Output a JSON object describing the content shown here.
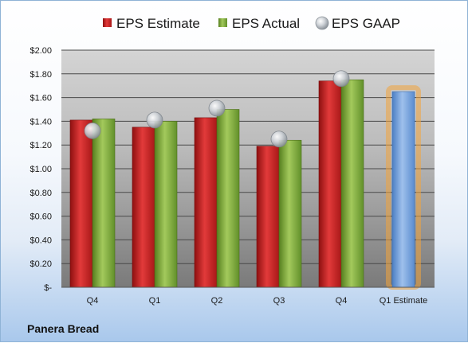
{
  "company_label": "Panera Bread",
  "colors": {
    "estimate": "#cc1f1f",
    "actual": "#7aa53a",
    "gaap": "#b9bec4",
    "forecast": "#6f9bd6",
    "forecast_glow": "#f2a43c"
  },
  "chart_data": {
    "type": "bar",
    "title": "",
    "xlabel": "",
    "ylabel": "",
    "categories": [
      "Q4",
      "Q1",
      "Q2",
      "Q3",
      "Q4",
      "Q1 Estimate"
    ],
    "series": [
      {
        "name": "EPS Estimate",
        "values": [
          1.41,
          1.35,
          1.43,
          1.19,
          1.74,
          null
        ]
      },
      {
        "name": "EPS Actual",
        "values": [
          1.42,
          1.4,
          1.5,
          1.24,
          1.75,
          null
        ]
      },
      {
        "name": "EPS GAAP",
        "values": [
          1.32,
          1.41,
          1.51,
          1.25,
          1.76,
          null
        ]
      }
    ],
    "forecast": {
      "category": "Q1 Estimate",
      "value": 1.65
    },
    "ylim": [
      0,
      2.0
    ],
    "yticks": [
      {
        "value": 0.0,
        "label": "$-"
      },
      {
        "value": 0.2,
        "label": "$0.20"
      },
      {
        "value": 0.4,
        "label": "$0.40"
      },
      {
        "value": 0.6,
        "label": "$0.60"
      },
      {
        "value": 0.8,
        "label": "$0.80"
      },
      {
        "value": 1.0,
        "label": "$1.00"
      },
      {
        "value": 1.2,
        "label": "$1.20"
      },
      {
        "value": 1.4,
        "label": "$1.40"
      },
      {
        "value": 1.6,
        "label": "$1.60"
      },
      {
        "value": 1.8,
        "label": "$1.80"
      },
      {
        "value": 2.0,
        "label": "$2.00"
      }
    ],
    "grid": true,
    "legend_position": "top-center"
  }
}
